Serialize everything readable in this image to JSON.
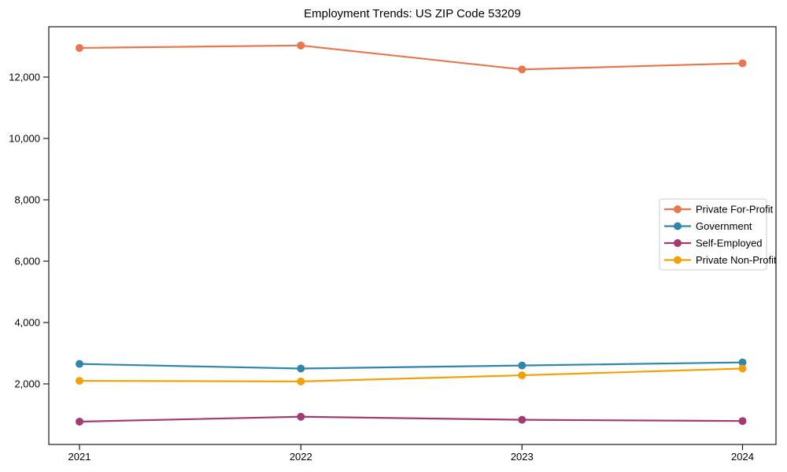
{
  "chart_data": {
    "type": "line",
    "title": "Employment Trends: US ZIP Code 53209",
    "xlabel": "",
    "ylabel": "",
    "x": [
      2021,
      2022,
      2023,
      2024
    ],
    "xtick_labels": [
      "2021",
      "2022",
      "2023",
      "2024"
    ],
    "series": [
      {
        "name": "Private For-Profit",
        "color": "#e8764e",
        "values": [
          12950,
          13030,
          12250,
          12450
        ]
      },
      {
        "name": "Government",
        "color": "#2e86ab",
        "values": [
          2650,
          2500,
          2600,
          2700
        ]
      },
      {
        "name": "Self-Employed",
        "color": "#a23b72",
        "values": [
          770,
          930,
          830,
          790
        ]
      },
      {
        "name": "Private Non-Profit",
        "color": "#f1a208",
        "values": [
          2100,
          2080,
          2280,
          2500
        ]
      }
    ],
    "yticks": [
      2000,
      4000,
      6000,
      8000,
      10000,
      12000
    ],
    "ytick_labels": [
      "2,000",
      "4,000",
      "6,000",
      "8,000",
      "10,000",
      "12,000"
    ],
    "ylim": [
      25,
      13650
    ],
    "grid": false,
    "legend_position": "center-right",
    "marker": "circle",
    "line_width": 2.2,
    "marker_radius": 5,
    "axis_color": "#1a1a1a",
    "legend_border_color": "#cccccc",
    "background_color": "#ffffff"
  }
}
